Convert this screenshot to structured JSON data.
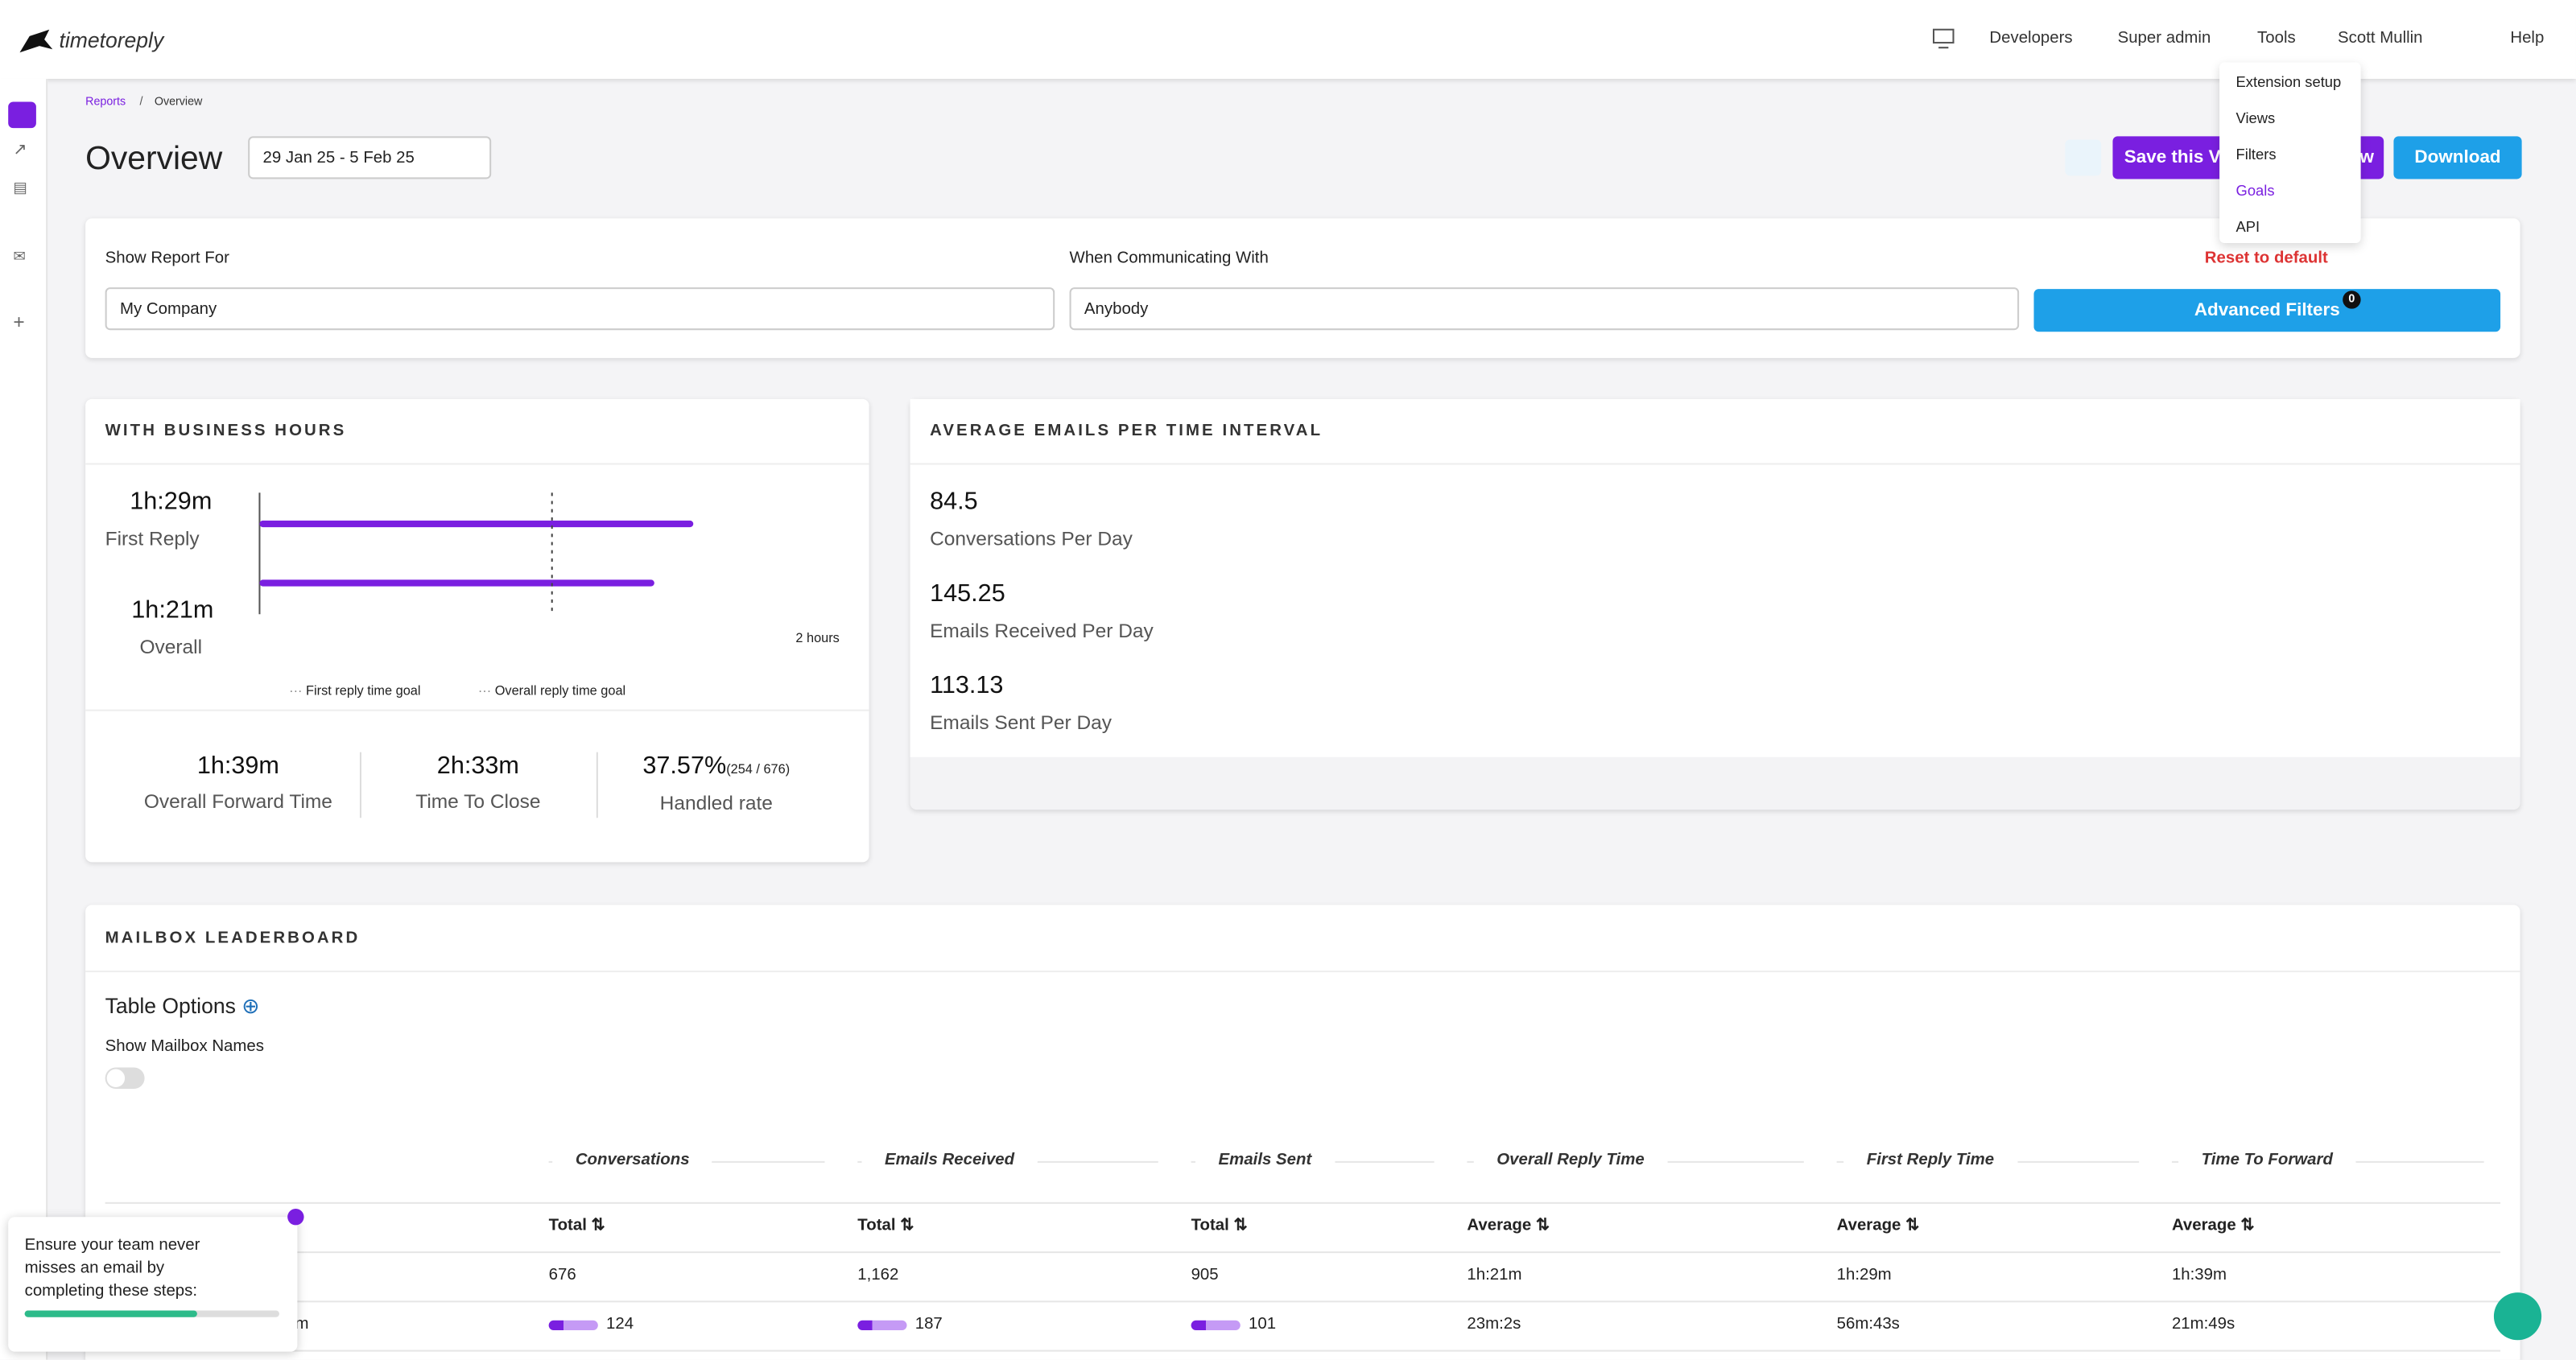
{
  "nav": {
    "brand": "timetoreply",
    "items": [
      "Developers",
      "Super admin",
      "Tools",
      "Scott Mullin",
      "Help"
    ]
  },
  "tools_menu": [
    "Extension setup",
    "Views",
    "Filters",
    "Goals",
    "API"
  ],
  "breadcrumb": [
    "Reports",
    "Overview"
  ],
  "page_title": "Overview",
  "date_range": "29 Jan 25 - 5 Feb 25",
  "actions": [
    "Save this Vi",
    "w",
    "Download"
  ],
  "filters": {
    "report_for_label": "Show Report For",
    "report_for": "My Company",
    "communicating_label": "When Communicating With",
    "communicating": "Anybody",
    "reset": "Reset to default",
    "advanced": "Advanced Filters",
    "badge": 0
  },
  "business_hours": {
    "title": "WITH BUSINESS HOURS",
    "chart": {
      "type": "bar",
      "xlim": [
        0,
        120
      ],
      "x_label": "2 hours",
      "goal": 60,
      "series": [
        {
          "name": "First Reply",
          "value": 89,
          "value_label": "1h:29m",
          "color": "#7a1fe0"
        },
        {
          "name": "Overall",
          "value": 81,
          "value_label": "1h:21m",
          "color": "#7a1fe0"
        }
      ],
      "legend": [
        "First reply time goal",
        "Overall reply time goal"
      ]
    },
    "stats": [
      {
        "value": "1h:39m",
        "label": "Overall Forward Time"
      },
      {
        "value": "2h:33m",
        "label": "Time To Close"
      },
      {
        "value": "37.57%",
        "extra": "(254 / 676)",
        "label": "Handled rate"
      }
    ]
  },
  "averages": {
    "title": "AVERAGE EMAILS PER TIME INTERVAL",
    "metrics": [
      {
        "value": "84.5",
        "label": "Conversations Per Day"
      },
      {
        "value": "145.25",
        "label": "Emails Received Per Day"
      },
      {
        "value": "113.13",
        "label": "Emails Sent Per Day"
      }
    ]
  },
  "leaderboard": {
    "title": "MAILBOX LEADERBOARD",
    "table_options": "Table Options",
    "show_names": "Show Mailbox Names",
    "groups": [
      "Conversations",
      "Emails Received",
      "Emails Sent",
      "Overall Reply Time",
      "First Reply Time",
      "Time To Forward"
    ],
    "columns": [
      "Total",
      "Total",
      "Total",
      "Average",
      "Average",
      "Average"
    ],
    "rows": [
      {
        "cells": [
          "676",
          "1,162",
          "905",
          "1h:21m",
          "1h:29m",
          "1h:39m"
        ]
      },
      {
        "mailbox": "om",
        "cells": [
          "124",
          "187",
          "101",
          "23m:2s",
          "56m:43s",
          "21m:49s"
        ]
      }
    ]
  },
  "onboarding": {
    "text": "Ensure your team never misses an email by completing these steps:"
  }
}
